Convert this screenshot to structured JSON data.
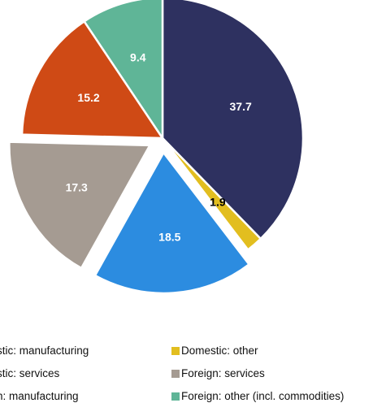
{
  "chart_data": {
    "type": "pie",
    "start_angle_deg": 0,
    "direction": "clockwise",
    "slices": [
      {
        "name": "Domestic: manufacturing",
        "value": 37.7,
        "color": "#2e3160",
        "label": "37.7",
        "label_color": "#ffffff",
        "exploded": false
      },
      {
        "name": "Domestic: other",
        "value": 1.9,
        "color": "#e2be1f",
        "label": "1.9",
        "label_color": "#000000",
        "exploded": false
      },
      {
        "name": "Domestic: services",
        "value": 18.5,
        "color": "#2c8ce0",
        "label": "18.5",
        "label_color": "#ffffff",
        "exploded": true
      },
      {
        "name": "Foreign: services",
        "value": 17.3,
        "color": "#a59b92",
        "label": "17.3",
        "label_color": "#ffffff",
        "exploded": true
      },
      {
        "name": "Foreign: manufacturing",
        "value": 15.2,
        "color": "#cf4a15",
        "label": "15.2",
        "label_color": "#ffffff",
        "exploded": false
      },
      {
        "name": "Foreign: other (incl. commodities)",
        "value": 9.4,
        "color": "#5fb597",
        "label": "9.4",
        "label_color": "#ffffff",
        "exploded": false
      }
    ],
    "legend": {
      "placement": "bottom",
      "entries": [
        {
          "text": "stic: manufacturing",
          "series": "Domestic: manufacturing",
          "color": "#2e3160"
        },
        {
          "text": "Domestic: other",
          "series": "Domestic: other",
          "color": "#e2be1f"
        },
        {
          "text": "stic: services",
          "series": "Domestic: services",
          "color": "#2c8ce0"
        },
        {
          "text": "Foreign: services",
          "series": "Foreign: services",
          "color": "#a59b92"
        },
        {
          "text": "n: manufacturing",
          "series": "Foreign: manufacturing",
          "color": "#cf4a15"
        },
        {
          "text": "Foreign: other (incl. commodities)",
          "series": "Foreign: other (incl. commodities)",
          "color": "#5fb597"
        }
      ]
    }
  }
}
